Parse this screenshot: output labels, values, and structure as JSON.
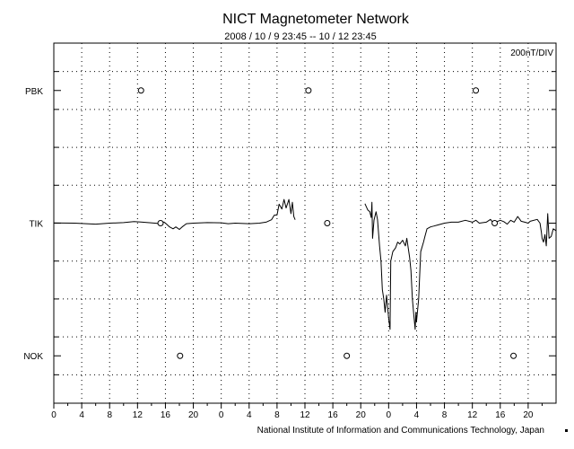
{
  "chart_data": {
    "type": "line",
    "title": "NICT Magnetometer Network",
    "subtitle": "2008 / 10 / 9   23:45 -- 10 / 12   23:45",
    "scale_label": "200nT/DIV",
    "credit": "National Institute of Information and Communications Technology, Japan",
    "x_unit": "hours since 2008-10-09 23:45 UT",
    "xlim": [
      0,
      72
    ],
    "x_ticks": [
      0,
      4,
      8,
      12,
      16,
      20,
      24,
      28,
      32,
      36,
      40,
      44,
      48,
      52,
      56,
      60,
      64,
      68
    ],
    "x_tick_labels": [
      "0",
      "4",
      "8",
      "12",
      "16",
      "20",
      "0",
      "4",
      "8",
      "12",
      "16",
      "20",
      "0",
      "4",
      "8",
      "12",
      "16",
      "20"
    ],
    "y_unit": "nT",
    "ylim": [
      -950,
      950
    ],
    "y_major_step": 200,
    "y_categories": [
      {
        "label": "PBK",
        "offset_nT": 700
      },
      {
        "label": "TIK",
        "offset_nT": 0
      },
      {
        "label": "NOK",
        "offset_nT": -700
      }
    ],
    "grid": true,
    "markers": [
      {
        "station": "PBK",
        "hours": [
          12.5,
          36.5,
          60.5
        ]
      },
      {
        "station": "TIK",
        "hours": [
          15.3,
          39.2,
          63.2
        ]
      },
      {
        "station": "NOK",
        "hours": [
          18.1,
          42.0,
          65.9
        ]
      }
    ],
    "series": [
      {
        "name": "TIK",
        "segments": [
          [
            [
              0,
              1
            ],
            [
              3,
              0
            ],
            [
              6,
              -5
            ],
            [
              8,
              0
            ],
            [
              10,
              3
            ],
            [
              11.5,
              8
            ],
            [
              12.5,
              6
            ],
            [
              13.5,
              3
            ],
            [
              14.5,
              0
            ],
            [
              15.3,
              -3
            ],
            [
              15.8,
              6
            ],
            [
              16.1,
              -3
            ],
            [
              16.6,
              -20
            ],
            [
              17.1,
              -30
            ],
            [
              17.5,
              -20
            ],
            [
              18.0,
              -33
            ],
            [
              18.4,
              -20
            ],
            [
              19.0,
              -3
            ],
            [
              20,
              0
            ],
            [
              22,
              3
            ],
            [
              24,
              2
            ],
            [
              25,
              -3
            ],
            [
              26,
              0
            ],
            [
              28,
              -3
            ],
            [
              29.5,
              0
            ],
            [
              30.5,
              6
            ],
            [
              31.2,
              18
            ],
            [
              31.6,
              42
            ],
            [
              32.0,
              43
            ],
            [
              32.3,
              100
            ],
            [
              32.7,
              75
            ],
            [
              33.0,
              125
            ],
            [
              33.3,
              80
            ],
            [
              33.7,
              125
            ],
            [
              34.0,
              50
            ],
            [
              34.2,
              110
            ],
            [
              34.4,
              35
            ],
            [
              34.6,
              18
            ]
          ],
          [
            [
              44.6,
              103
            ],
            [
              45.0,
              70
            ],
            [
              45.3,
              60
            ],
            [
              45.5,
              30
            ],
            [
              45.6,
              110
            ],
            [
              45.7,
              -80
            ],
            [
              45.9,
              15
            ],
            [
              46.2,
              60
            ],
            [
              46.4,
              20
            ],
            [
              46.7,
              -120
            ],
            [
              46.9,
              -200
            ],
            [
              47.1,
              -350
            ],
            [
              47.3,
              -400
            ],
            [
              47.5,
              -470
            ],
            [
              47.7,
              -380
            ],
            [
              48.0,
              -500
            ],
            [
              48.2,
              -560
            ],
            [
              48.3,
              -200
            ],
            [
              48.6,
              -150
            ],
            [
              49.0,
              -130
            ],
            [
              49.3,
              -100
            ],
            [
              49.6,
              -110
            ],
            [
              50.0,
              -90
            ],
            [
              50.4,
              -120
            ],
            [
              50.6,
              -80
            ],
            [
              51.0,
              -180
            ],
            [
              51.2,
              -250
            ],
            [
              51.4,
              -400
            ],
            [
              51.6,
              -480
            ],
            [
              51.8,
              -560
            ],
            [
              51.9,
              -470
            ],
            [
              52.0,
              -520
            ],
            [
              52.3,
              -400
            ],
            [
              52.6,
              -150
            ],
            [
              53.0,
              -100
            ],
            [
              53.2,
              -70
            ],
            [
              53.5,
              -30
            ],
            [
              54.0,
              -20
            ],
            [
              54.5,
              -15
            ],
            [
              55.0,
              -10
            ],
            [
              56.0,
              0
            ],
            [
              57.0,
              5
            ],
            [
              58.0,
              5
            ],
            [
              59.0,
              15
            ],
            [
              60.0,
              5
            ],
            [
              60.5,
              15
            ],
            [
              61.0,
              0
            ],
            [
              62.0,
              5
            ],
            [
              62.6,
              20
            ],
            [
              63.0,
              0
            ],
            [
              64.0,
              15
            ],
            [
              64.5,
              8
            ],
            [
              65.0,
              -5
            ],
            [
              65.5,
              15
            ],
            [
              66.0,
              5
            ],
            [
              66.5,
              35
            ],
            [
              66.8,
              20
            ],
            [
              67.0,
              10
            ],
            [
              67.5,
              5
            ],
            [
              68.0,
              0
            ],
            [
              68.3,
              10
            ],
            [
              69.3,
              20
            ],
            [
              69.7,
              0
            ],
            [
              69.9,
              -50
            ],
            [
              70.0,
              -80
            ],
            [
              70.2,
              -100
            ],
            [
              70.4,
              -60
            ],
            [
              70.6,
              -120
            ],
            [
              70.8,
              50
            ],
            [
              71.0,
              -80
            ],
            [
              71.3,
              -70
            ],
            [
              71.6,
              -30
            ],
            [
              72.0,
              -40
            ]
          ]
        ]
      }
    ]
  }
}
